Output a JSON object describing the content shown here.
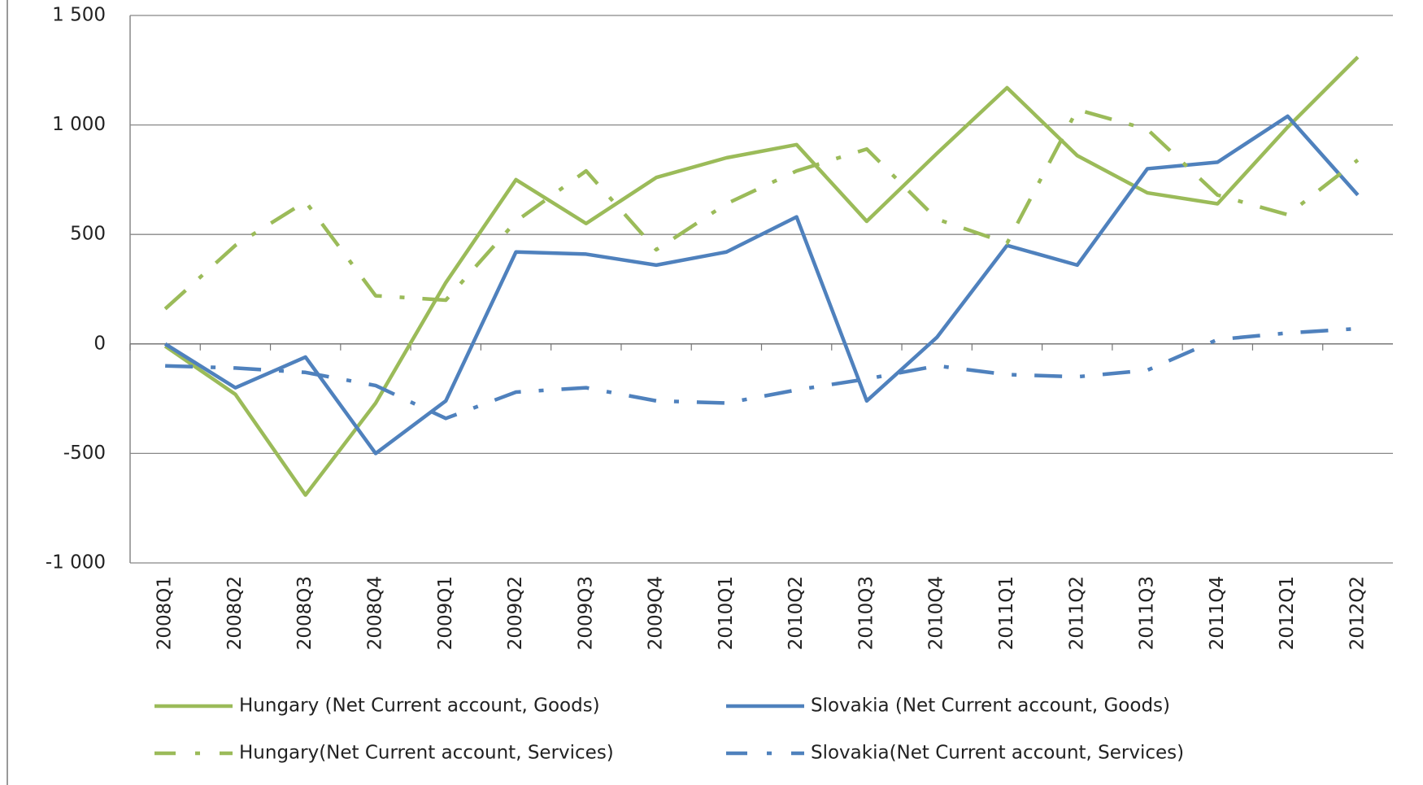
{
  "chart_data": {
    "type": "line",
    "categories": [
      "2008Q1",
      "2008Q2",
      "2008Q3",
      "2008Q4",
      "2009Q1",
      "2009Q2",
      "2009Q3",
      "2009Q4",
      "2010Q1",
      "2010Q2",
      "2010Q3",
      "2010Q4",
      "2011Q1",
      "2011Q2",
      "2011Q3",
      "2011Q4",
      "2012Q1",
      "2012Q2"
    ],
    "series": [
      {
        "name": "Hungary (Net Current account, Goods)",
        "color": "#9bbb59",
        "dash": "solid",
        "values": [
          -10,
          -230,
          -690,
          -270,
          280,
          750,
          550,
          760,
          850,
          910,
          560,
          870,
          1170,
          860,
          690,
          640,
          990,
          1310
        ]
      },
      {
        "name": "Slovakia (Net Current account, Goods)",
        "color": "#4f81bd",
        "dash": "solid",
        "values": [
          0,
          -200,
          -60,
          -500,
          -260,
          420,
          410,
          360,
          420,
          580,
          -260,
          30,
          450,
          360,
          800,
          830,
          1040,
          680
        ]
      },
      {
        "name": "Hungary(Net Current account, Services)",
        "color": "#9bbb59",
        "dash": "dashdot",
        "values": [
          160,
          450,
          650,
          220,
          200,
          560,
          790,
          430,
          640,
          790,
          890,
          570,
          460,
          1070,
          980,
          680,
          590,
          840
        ]
      },
      {
        "name": "Slovakia(Net Current account, Services)",
        "color": "#4f81bd",
        "dash": "dashdot",
        "values": [
          -100,
          -110,
          -130,
          -190,
          -340,
          -220,
          -200,
          -260,
          -270,
          -210,
          -160,
          -100,
          -140,
          -150,
          -120,
          20,
          50,
          70
        ]
      }
    ],
    "ylim": [
      -1000,
      1500
    ],
    "yticks": [
      {
        "value": -1000,
        "label": "-1 000"
      },
      -500,
      0,
      500,
      {
        "value": 1000,
        "label": "1 000"
      },
      {
        "value": 1500,
        "label": "1 500"
      }
    ],
    "grid": true,
    "legend": "bottom"
  }
}
